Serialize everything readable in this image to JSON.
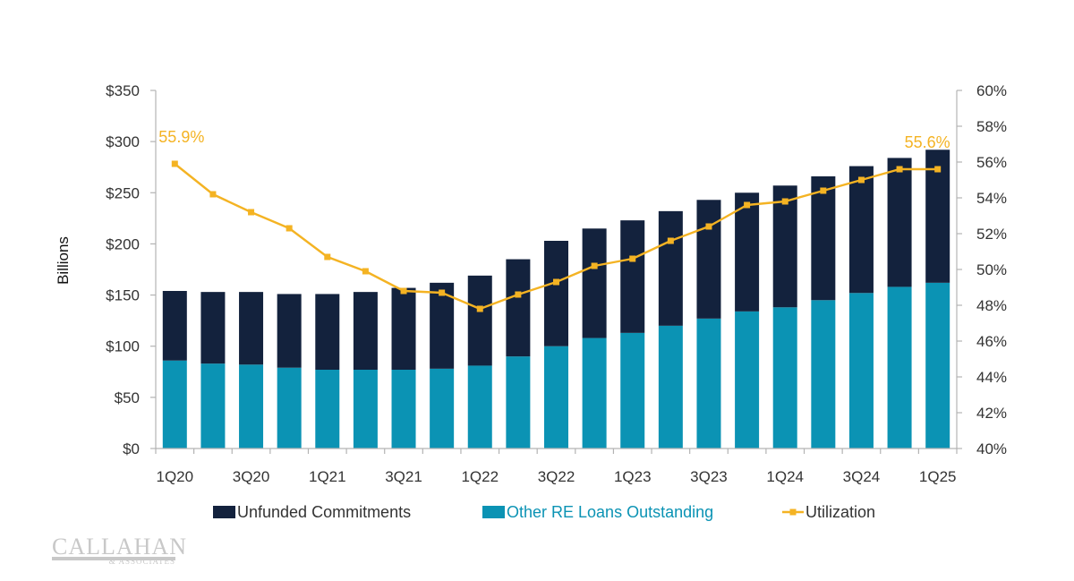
{
  "chart_data": {
    "type": "bar",
    "stacked": true,
    "categories": [
      "1Q20",
      "2Q20",
      "3Q20",
      "4Q20",
      "1Q21",
      "2Q21",
      "3Q21",
      "4Q21",
      "1Q22",
      "2Q22",
      "3Q22",
      "4Q22",
      "1Q23",
      "2Q23",
      "3Q23",
      "4Q23",
      "1Q24",
      "2Q24",
      "3Q24",
      "4Q24",
      "1Q25"
    ],
    "x_tick_labels": [
      "1Q20",
      "3Q20",
      "1Q21",
      "3Q21",
      "1Q22",
      "3Q22",
      "1Q23",
      "3Q23",
      "1Q24",
      "3Q24",
      "1Q25"
    ],
    "series": [
      {
        "name": "Other RE Loans Outstanding",
        "type": "bar",
        "axis": "left",
        "color": "#0b93b4",
        "values": [
          86,
          83,
          82,
          79,
          77,
          77,
          77,
          78,
          81,
          90,
          100,
          108,
          113,
          120,
          127,
          134,
          138,
          145,
          152,
          158,
          162
        ]
      },
      {
        "name": "Unfunded Commitments",
        "type": "bar",
        "axis": "left",
        "color": "#13223d",
        "values": [
          68,
          70,
          71,
          72,
          74,
          76,
          80,
          84,
          88,
          95,
          103,
          107,
          110,
          112,
          116,
          116,
          119,
          121,
          124,
          126,
          130
        ]
      },
      {
        "name": "Utilization",
        "type": "line",
        "axis": "right",
        "color": "#f4b323",
        "values": [
          55.9,
          54.2,
          53.2,
          52.3,
          50.7,
          49.9,
          48.8,
          48.7,
          47.8,
          48.6,
          49.3,
          50.2,
          50.6,
          51.6,
          52.4,
          53.6,
          53.8,
          54.4,
          55.0,
          55.6,
          55.6
        ]
      }
    ],
    "ylabel": "Billions",
    "y_left": {
      "min": 0,
      "max": 350,
      "step": 50,
      "ticks": [
        "$0",
        "$50",
        "$100",
        "$150",
        "$200",
        "$250",
        "$300",
        "$350"
      ]
    },
    "y_right": {
      "min": 40,
      "max": 60,
      "step": 2,
      "ticks": [
        "40%",
        "42%",
        "44%",
        "46%",
        "48%",
        "50%",
        "52%",
        "54%",
        "56%",
        "58%",
        "60%"
      ]
    },
    "annotations": [
      {
        "text": "55.9%",
        "series": "Utilization",
        "category": "1Q20"
      },
      {
        "text": "55.6%",
        "series": "Utilization",
        "category": "1Q25"
      }
    ],
    "legend": {
      "position": "bottom",
      "items": [
        {
          "label": "Unfunded Commitments",
          "color": "#13223d",
          "text_color": "#333333",
          "marker": "square"
        },
        {
          "label": "Other RE Loans Outstanding",
          "color": "#0b93b4",
          "text_color": "#0b93b4",
          "marker": "square"
        },
        {
          "label": "Utilization",
          "color": "#f4b323",
          "text_color": "#333333",
          "marker": "line-square"
        }
      ]
    },
    "grid": false
  },
  "logo": {
    "name": "CALLAHAN",
    "sub": "& ASSOCIATES"
  },
  "colors": {
    "axis": "#b3b3b3",
    "tick_text": "#333333",
    "annotation": "#f4b323"
  }
}
